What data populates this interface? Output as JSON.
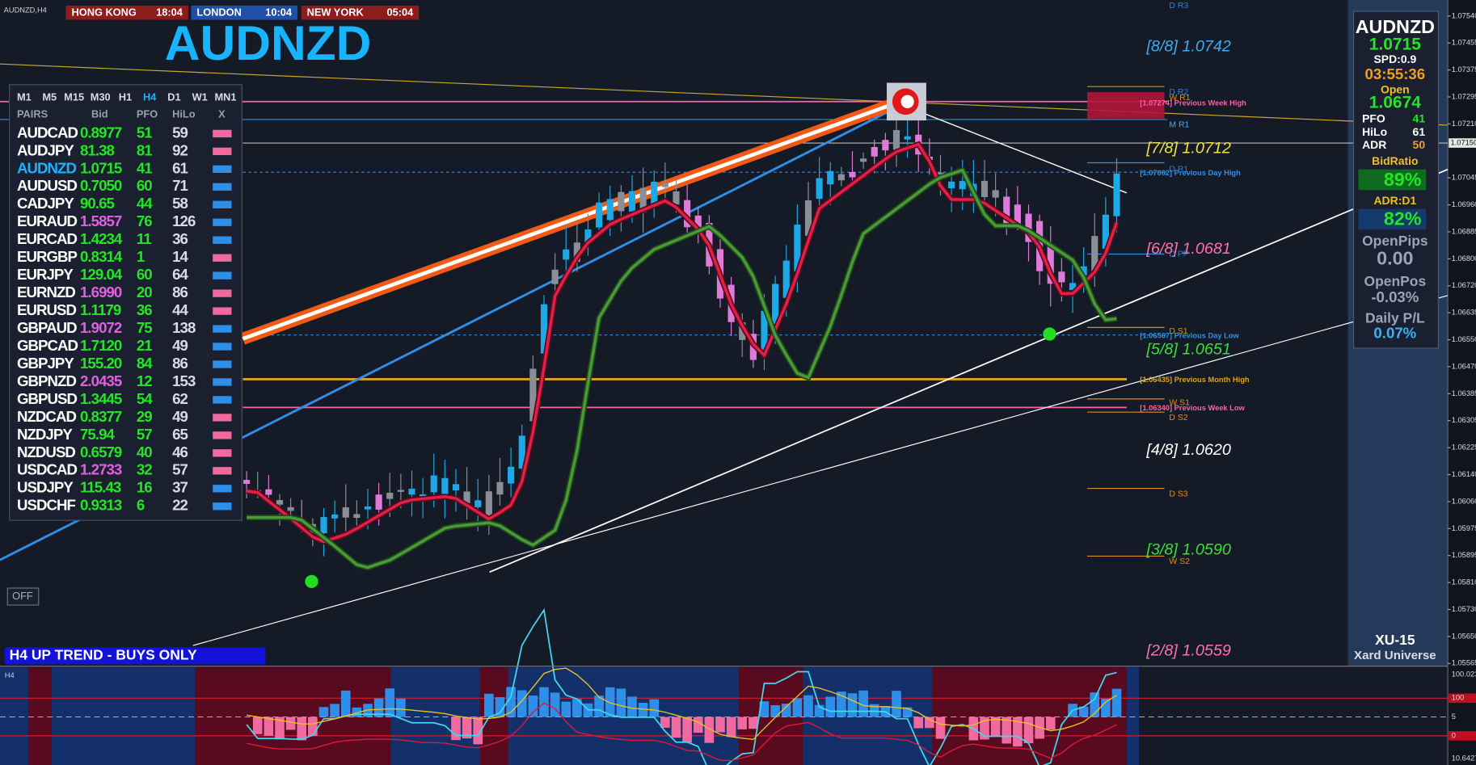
{
  "symbol_tag": "AUDNZD,H4",
  "clocks": [
    {
      "city": "HONG KONG",
      "time": "18:04",
      "color": "#8e1c1c"
    },
    {
      "city": "LONDON",
      "time": "10:04",
      "color": "#1f4fa8"
    },
    {
      "city": "NEW YORK",
      "time": "05:04",
      "color": "#8e1c1c"
    }
  ],
  "big_title": "AUDNZD",
  "pairs_table": {
    "timeframes": [
      "M1",
      "M5",
      "M15",
      "M30",
      "H1",
      "H4",
      "D1",
      "W1",
      "MN1"
    ],
    "selected_timeframe": 5,
    "header": [
      "PAIRS",
      "Bid",
      "PFO",
      "HiLo",
      "X"
    ],
    "selected_row": 2,
    "rows": [
      {
        "pair": "AUDCAD",
        "bid": "0.8977",
        "pfo": "51",
        "hilo": "59",
        "bid_color": "#22e622",
        "x_color": "#f06aa0"
      },
      {
        "pair": "AUDJPY",
        "bid": "81.38",
        "pfo": "81",
        "hilo": "92",
        "bid_color": "#22e622",
        "x_color": "#f06aa0"
      },
      {
        "pair": "AUDNZD",
        "bid": "1.0715",
        "pfo": "41",
        "hilo": "61",
        "bid_color": "#22e622",
        "x_color": "#2e8fe8"
      },
      {
        "pair": "AUDUSD",
        "bid": "0.7050",
        "pfo": "60",
        "hilo": "71",
        "bid_color": "#22e622",
        "x_color": "#2e8fe8"
      },
      {
        "pair": "CADJPY",
        "bid": "90.65",
        "pfo": "44",
        "hilo": "58",
        "bid_color": "#22e622",
        "x_color": "#2e8fe8"
      },
      {
        "pair": "EURAUD",
        "bid": "1.5857",
        "pfo": "76",
        "hilo": "126",
        "bid_color": "#e060e0",
        "x_color": "#2e8fe8"
      },
      {
        "pair": "EURCAD",
        "bid": "1.4234",
        "pfo": "11",
        "hilo": "36",
        "bid_color": "#22e622",
        "x_color": "#2e8fe8"
      },
      {
        "pair": "EURGBP",
        "bid": "0.8314",
        "pfo": "1",
        "hilo": "14",
        "bid_color": "#22e622",
        "x_color": "#f06aa0"
      },
      {
        "pair": "EURJPY",
        "bid": "129.04",
        "pfo": "60",
        "hilo": "64",
        "bid_color": "#22e622",
        "x_color": "#2e8fe8"
      },
      {
        "pair": "EURNZD",
        "bid": "1.6990",
        "pfo": "20",
        "hilo": "86",
        "bid_color": "#e060e0",
        "x_color": "#f06aa0"
      },
      {
        "pair": "EURUSD",
        "bid": "1.1179",
        "pfo": "36",
        "hilo": "44",
        "bid_color": "#22e622",
        "x_color": "#f06aa0"
      },
      {
        "pair": "GBPAUD",
        "bid": "1.9072",
        "pfo": "75",
        "hilo": "138",
        "bid_color": "#e060e0",
        "x_color": "#2e8fe8"
      },
      {
        "pair": "GBPCAD",
        "bid": "1.7120",
        "pfo": "21",
        "hilo": "49",
        "bid_color": "#22e622",
        "x_color": "#2e8fe8"
      },
      {
        "pair": "GBPJPY",
        "bid": "155.20",
        "pfo": "84",
        "hilo": "86",
        "bid_color": "#22e622",
        "x_color": "#2e8fe8"
      },
      {
        "pair": "GBPNZD",
        "bid": "2.0435",
        "pfo": "12",
        "hilo": "153",
        "bid_color": "#e060e0",
        "x_color": "#2e8fe8"
      },
      {
        "pair": "GBPUSD",
        "bid": "1.3445",
        "pfo": "54",
        "hilo": "62",
        "bid_color": "#22e622",
        "x_color": "#2e8fe8"
      },
      {
        "pair": "NZDCAD",
        "bid": "0.8377",
        "pfo": "29",
        "hilo": "49",
        "bid_color": "#22e622",
        "x_color": "#f06aa0"
      },
      {
        "pair": "NZDJPY",
        "bid": "75.94",
        "pfo": "57",
        "hilo": "65",
        "bid_color": "#22e622",
        "x_color": "#f06aa0"
      },
      {
        "pair": "NZDUSD",
        "bid": "0.6579",
        "pfo": "40",
        "hilo": "46",
        "bid_color": "#22e622",
        "x_color": "#f06aa0"
      },
      {
        "pair": "USDCAD",
        "bid": "1.2733",
        "pfo": "32",
        "hilo": "57",
        "bid_color": "#e060e0",
        "x_color": "#f06aa0"
      },
      {
        "pair": "USDJPY",
        "bid": "115.43",
        "pfo": "16",
        "hilo": "37",
        "bid_color": "#22e622",
        "x_color": "#2e8fe8"
      },
      {
        "pair": "USDCHF",
        "bid": "0.9313",
        "pfo": "6",
        "hilo": "22",
        "bid_color": "#22e622",
        "x_color": "#2e8fe8"
      }
    ]
  },
  "info_panel": {
    "symbol": "AUDNZD",
    "bid": "1.0715",
    "spread": "SPD:0.9",
    "timer": "03:55:36",
    "open_label": "Open",
    "open": "1.0674",
    "stats": [
      {
        "label": "PFO",
        "value": "41"
      },
      {
        "label": "HiLo",
        "value": "61"
      },
      {
        "label": "ADR",
        "value": "50"
      }
    ],
    "bid_ratio_label": "BidRatio",
    "bid_ratio": "89%",
    "adr_label": "ADR:D1",
    "adr": "82%",
    "open_pips_label": "OpenPips",
    "open_pips": "0.00",
    "open_pos_label": "OpenPos",
    "open_pos": "-0.03%",
    "daily_pl_label": "Daily P/L",
    "daily_pl": "0.07%",
    "brand": "XU-15",
    "brand_sub": "Xard Universe"
  },
  "murrey_levels": [
    {
      "text": "[8/8] 1.0742",
      "color": "#3fa9f5"
    },
    {
      "text": "[7/8] 1.0712",
      "color": "#f2e24a"
    },
    {
      "text": "[6/8] 1.0681",
      "color": "#ff6fb0"
    },
    {
      "text": "[5/8] 1.0651",
      "color": "#3cdc3c"
    },
    {
      "text": "[4/8] 1.0620",
      "color": "#ffffff"
    },
    {
      "text": "[3/8] 1.0590",
      "color": "#3cdc3c"
    },
    {
      "text": "[2/8] 1.0559",
      "color": "#ff6fb0"
    }
  ],
  "pivot_labels": [
    {
      "text": "D R3",
      "color": "#3a7fd0"
    },
    {
      "text": "D R2",
      "color": "#3a7fd0"
    },
    {
      "text": "W R1",
      "color": "#e08a20"
    },
    {
      "text": "M R1",
      "color": "#3fb0f0"
    },
    {
      "text": "D R1",
      "color": "#3a7fd0"
    },
    {
      "text": "D PP",
      "color": "#3a7fd0"
    },
    {
      "text": "D S1",
      "color": "#e08a20"
    },
    {
      "text": "W S1",
      "color": "#e08a20"
    },
    {
      "text": "D S2",
      "color": "#e08a20"
    },
    {
      "text": "D S3",
      "color": "#e08a20"
    },
    {
      "text": "W S2",
      "color": "#e08a20"
    }
  ],
  "level_lines": [
    {
      "text": "[1.07274] Previous Week High",
      "color": "#ff5fa8"
    },
    {
      "text": "[1.07062] Previous Day High",
      "color": "#2f8fe8"
    },
    {
      "text": "[1.06567] Previous Day Low",
      "color": "#2f8fe8"
    },
    {
      "text": "[1.06435] Previous Month High",
      "color": "#e0a020"
    },
    {
      "text": "[1.06340] Previous Week Low",
      "color": "#ff5fa8"
    }
  ],
  "price_axis": [
    "1.07540",
    "1.07455",
    "1.07375",
    "1.07295",
    "1.07210",
    "1.07045",
    "1.06960",
    "1.06885",
    "1.06800",
    "1.06720",
    "1.06635",
    "1.06550",
    "1.06470",
    "1.06385",
    "1.06305",
    "1.06225",
    "1.06140",
    "1.06060",
    "1.05975",
    "1.05895",
    "1.05810",
    "1.05730",
    "1.05650",
    "1.05565"
  ],
  "current_price": "1.07150",
  "indicator_axis": [
    "100.0232",
    "100",
    "5",
    "0",
    "10.64276"
  ],
  "indicator_label": "H4",
  "trend_banner": "H4 UP TREND - BUYS ONLY",
  "off_button": "OFF"
}
